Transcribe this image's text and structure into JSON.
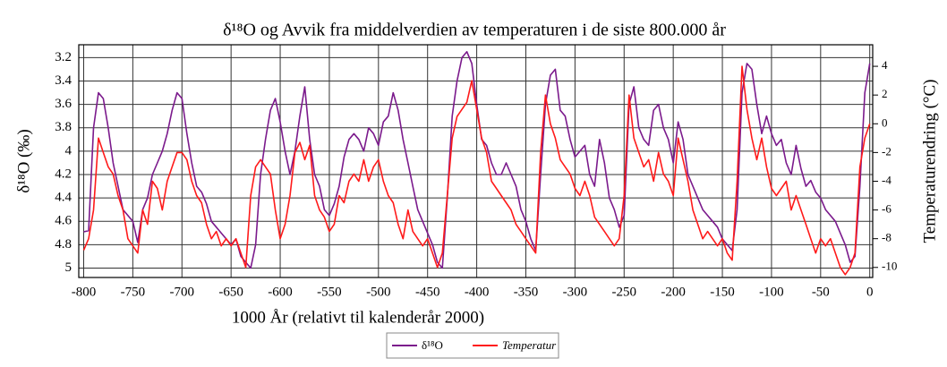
{
  "chart_data": {
    "type": "line",
    "title": "δ¹⁸O  og Avvik fra middelverdien av temperaturen i de siste 800.000 år",
    "xlabel": "1000 År (relativt til kalenderår 2000)",
    "ylabel": "δ¹⁸O (‰)",
    "y2label": "Temperaturendring (°C)",
    "xlim": [
      -805,
      3
    ],
    "xticks": [
      -800,
      -750,
      -700,
      -650,
      -600,
      -550,
      -500,
      -450,
      -400,
      -350,
      -300,
      -250,
      -200,
      -150,
      -100,
      -50,
      0
    ],
    "ylim": [
      5.08,
      3.09
    ],
    "yticks": [
      3.2,
      3.4,
      3.6,
      3.8,
      4,
      4.2,
      4.4,
      4.6,
      4.8,
      5
    ],
    "y2lim": [
      -10.7,
      5.5
    ],
    "y2ticks": [
      4,
      2,
      0,
      -2,
      -4,
      -6,
      -8,
      -10
    ],
    "grid": true,
    "legend": "bottom",
    "x": [
      -800,
      -795,
      -790,
      -785,
      -780,
      -775,
      -770,
      -765,
      -760,
      -755,
      -750,
      -745,
      -740,
      -735,
      -730,
      -725,
      -720,
      -715,
      -710,
      -705,
      -700,
      -695,
      -690,
      -685,
      -680,
      -675,
      -670,
      -665,
      -660,
      -655,
      -650,
      -645,
      -640,
      -635,
      -630,
      -625,
      -620,
      -615,
      -610,
      -605,
      -600,
      -595,
      -590,
      -585,
      -580,
      -575,
      -570,
      -565,
      -560,
      -555,
      -550,
      -545,
      -540,
      -535,
      -530,
      -525,
      -520,
      -515,
      -510,
      -505,
      -500,
      -495,
      -490,
      -485,
      -480,
      -475,
      -470,
      -465,
      -460,
      -455,
      -450,
      -445,
      -440,
      -435,
      -430,
      -425,
      -420,
      -415,
      -410,
      -405,
      -400,
      -395,
      -390,
      -385,
      -380,
      -375,
      -370,
      -365,
      -360,
      -355,
      -350,
      -345,
      -340,
      -335,
      -330,
      -325,
      -320,
      -315,
      -310,
      -305,
      -300,
      -295,
      -290,
      -285,
      -280,
      -275,
      -270,
      -265,
      -260,
      -255,
      -250,
      -245,
      -240,
      -235,
      -230,
      -225,
      -220,
      -215,
      -210,
      -205,
      -200,
      -195,
      -190,
      -185,
      -180,
      -175,
      -170,
      -165,
      -160,
      -155,
      -150,
      -145,
      -140,
      -135,
      -130,
      -125,
      -120,
      -115,
      -110,
      -105,
      -100,
      -95,
      -90,
      -85,
      -80,
      -75,
      -70,
      -65,
      -60,
      -55,
      -50,
      -45,
      -40,
      -35,
      -30,
      -25,
      -20,
      -15,
      -10,
      -5,
      0
    ],
    "series": [
      {
        "name": "δ¹⁸O",
        "color": "#7b1a8c",
        "axis": "y",
        "values": [
          4.69,
          4.68,
          3.8,
          3.5,
          3.55,
          3.8,
          4.1,
          4.3,
          4.5,
          4.55,
          4.6,
          4.78,
          4.5,
          4.4,
          4.2,
          4.1,
          4.0,
          3.85,
          3.65,
          3.5,
          3.55,
          3.85,
          4.1,
          4.3,
          4.35,
          4.45,
          4.6,
          4.65,
          4.7,
          4.75,
          4.8,
          4.75,
          4.9,
          4.95,
          5.0,
          4.8,
          4.2,
          3.9,
          3.65,
          3.55,
          3.75,
          4.0,
          4.2,
          4.0,
          3.7,
          3.45,
          3.9,
          4.2,
          4.3,
          4.5,
          4.55,
          4.45,
          4.3,
          4.05,
          3.9,
          3.85,
          3.9,
          4.0,
          3.8,
          3.85,
          3.95,
          3.75,
          3.7,
          3.5,
          3.65,
          3.9,
          4.1,
          4.3,
          4.5,
          4.6,
          4.7,
          4.8,
          4.95,
          5.0,
          4.4,
          3.7,
          3.4,
          3.2,
          3.15,
          3.25,
          3.6,
          3.9,
          3.95,
          4.1,
          4.2,
          4.2,
          4.1,
          4.2,
          4.3,
          4.5,
          4.6,
          4.75,
          4.85,
          4.2,
          3.6,
          3.35,
          3.3,
          3.65,
          3.7,
          3.9,
          4.05,
          4.0,
          3.95,
          4.2,
          4.3,
          3.9,
          4.1,
          4.4,
          4.5,
          4.65,
          4.55,
          3.6,
          3.45,
          3.8,
          3.9,
          3.95,
          3.65,
          3.6,
          3.8,
          3.9,
          4.1,
          3.75,
          3.9,
          4.2,
          4.3,
          4.4,
          4.5,
          4.55,
          4.6,
          4.65,
          4.75,
          4.8,
          4.85,
          4.5,
          3.5,
          3.25,
          3.3,
          3.6,
          3.85,
          3.7,
          3.85,
          3.95,
          3.9,
          4.1,
          4.2,
          3.95,
          4.15,
          4.3,
          4.25,
          4.35,
          4.4,
          4.5,
          4.55,
          4.6,
          4.7,
          4.8,
          4.95,
          4.9,
          4.3,
          3.5,
          3.25
        ]
      },
      {
        "name": "Temperatur",
        "color": "#ff1a1a",
        "axis": "y2",
        "values": [
          -8.8,
          -8,
          -6,
          -1,
          -2,
          -3,
          -3.5,
          -5,
          -6,
          -8,
          -8.5,
          -9,
          -6,
          -7,
          -4,
          -4.5,
          -6,
          -4,
          -3,
          -2,
          -2,
          -2.5,
          -4,
          -5,
          -5.5,
          -7,
          -8,
          -7.5,
          -8.5,
          -8,
          -8.5,
          -8,
          -9,
          -10,
          -5,
          -3,
          -2.5,
          -3,
          -3.5,
          -6,
          -8,
          -7,
          -5,
          -2,
          -1.3,
          -2.5,
          -1.5,
          -5,
          -6,
          -6.5,
          -7.5,
          -7,
          -5,
          -5.5,
          -4,
          -3.5,
          -4,
          -2.5,
          -4,
          -3,
          -2.5,
          -4,
          -5,
          -5.5,
          -7,
          -8,
          -6,
          -7.5,
          -8,
          -8.5,
          -8,
          -9,
          -10,
          -9,
          -5,
          -1,
          0.5,
          1,
          1.5,
          3,
          1,
          -1,
          -2,
          -4,
          -4.5,
          -5,
          -5.5,
          -6,
          -7,
          -7.5,
          -8,
          -8.5,
          -9,
          -2,
          2,
          0,
          -1,
          -2.5,
          -3,
          -3.5,
          -4.5,
          -5,
          -4,
          -5,
          -6.5,
          -7,
          -7.5,
          -8,
          -8.5,
          -8,
          -5,
          2,
          -1,
          -2,
          -3,
          -2.5,
          -4,
          -2,
          -3.5,
          -4,
          -5,
          -1,
          -2.5,
          -4,
          -6,
          -7,
          -8,
          -7.5,
          -8,
          -8.5,
          -8,
          -9,
          -9.5,
          -4,
          4,
          1,
          -1,
          -2.5,
          -1,
          -3,
          -4.5,
          -5,
          -4.5,
          -4,
          -6,
          -5,
          -6,
          -7,
          -8,
          -9,
          -8,
          -8.5,
          -8,
          -9,
          -10,
          -10.5,
          -10,
          -9,
          -3,
          -1,
          0
        ]
      }
    ]
  }
}
